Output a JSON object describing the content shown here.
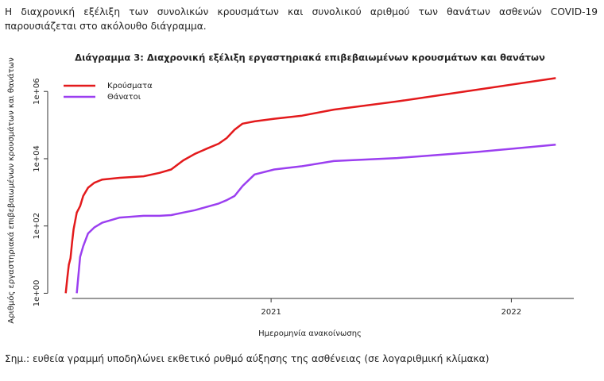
{
  "intro": "Η διαχρονική εξέλιξη των συνολικών κρουσμάτων και συνολικού αριθμού των θανάτων ασθενών COVID-19 παρουσιάζεται στο ακόλουθο διάγραμμα.",
  "note": "Σημ.: ευθεία γραμμή υποδηλώνει εκθετικό ρυθμό αύξησης της ασθένειας (σε λογαριθμική κλίμακα)",
  "chart_data": {
    "type": "line",
    "title": "Διάγραμμα 3: Διαχρονική εξέλιξη εργαστηριακά επιβεβαιωμένων κρουσμάτων και θανάτων",
    "x_label": "Ημερομηνία ανακοίνωσης",
    "y_label": "Αριθμός εργαστηριακά επιβεβαιωμένων κρουσμάτων και θανάτων",
    "x": [
      2020.145,
      2020.152,
      2020.158,
      2020.165,
      2020.172,
      2020.178,
      2020.191,
      2020.205,
      2020.218,
      2020.238,
      2020.264,
      2020.297,
      2020.37,
      2020.469,
      2020.535,
      2020.584,
      2020.634,
      2020.683,
      2020.733,
      2020.782,
      2020.815,
      2020.848,
      2020.881,
      2020.931,
      2021.013,
      2021.129,
      2021.261,
      2021.525,
      2021.855,
      2022.185
    ],
    "series": [
      {
        "name": "Κρούσματα",
        "color": "#e31a1c",
        "values": [
          1,
          3,
          7,
          11,
          34,
          80,
          250,
          390,
          780,
          1370,
          1920,
          2400,
          2700,
          3000,
          3800,
          4800,
          8900,
          14000,
          20000,
          28000,
          41000,
          73000,
          110000,
          129000,
          154000,
          191000,
          288000,
          505000,
          1120000,
          2500000
        ]
      },
      {
        "name": "Θάνατοι",
        "color": "#9b3ff0",
        "values": [
          null,
          null,
          null,
          null,
          null,
          null,
          1,
          12,
          25,
          60,
          90,
          125,
          178,
          200,
          200,
          210,
          250,
          295,
          370,
          465,
          585,
          780,
          1540,
          3400,
          4800,
          6000,
          8500,
          10500,
          15800,
          26300
        ]
      }
    ],
    "xlim": [
      2020.07,
      2022.26
    ],
    "xticks": [
      2021,
      2022
    ],
    "ylim": [
      0.7,
      3000000
    ],
    "yticks": [
      {
        "value": 1,
        "label": "1e+00"
      },
      {
        "value": 100,
        "label": "1e+02"
      },
      {
        "value": 10000,
        "label": "1e+04"
      },
      {
        "value": 1000000,
        "label": "1e+06"
      }
    ],
    "log_y": true,
    "legend": "top-left"
  }
}
